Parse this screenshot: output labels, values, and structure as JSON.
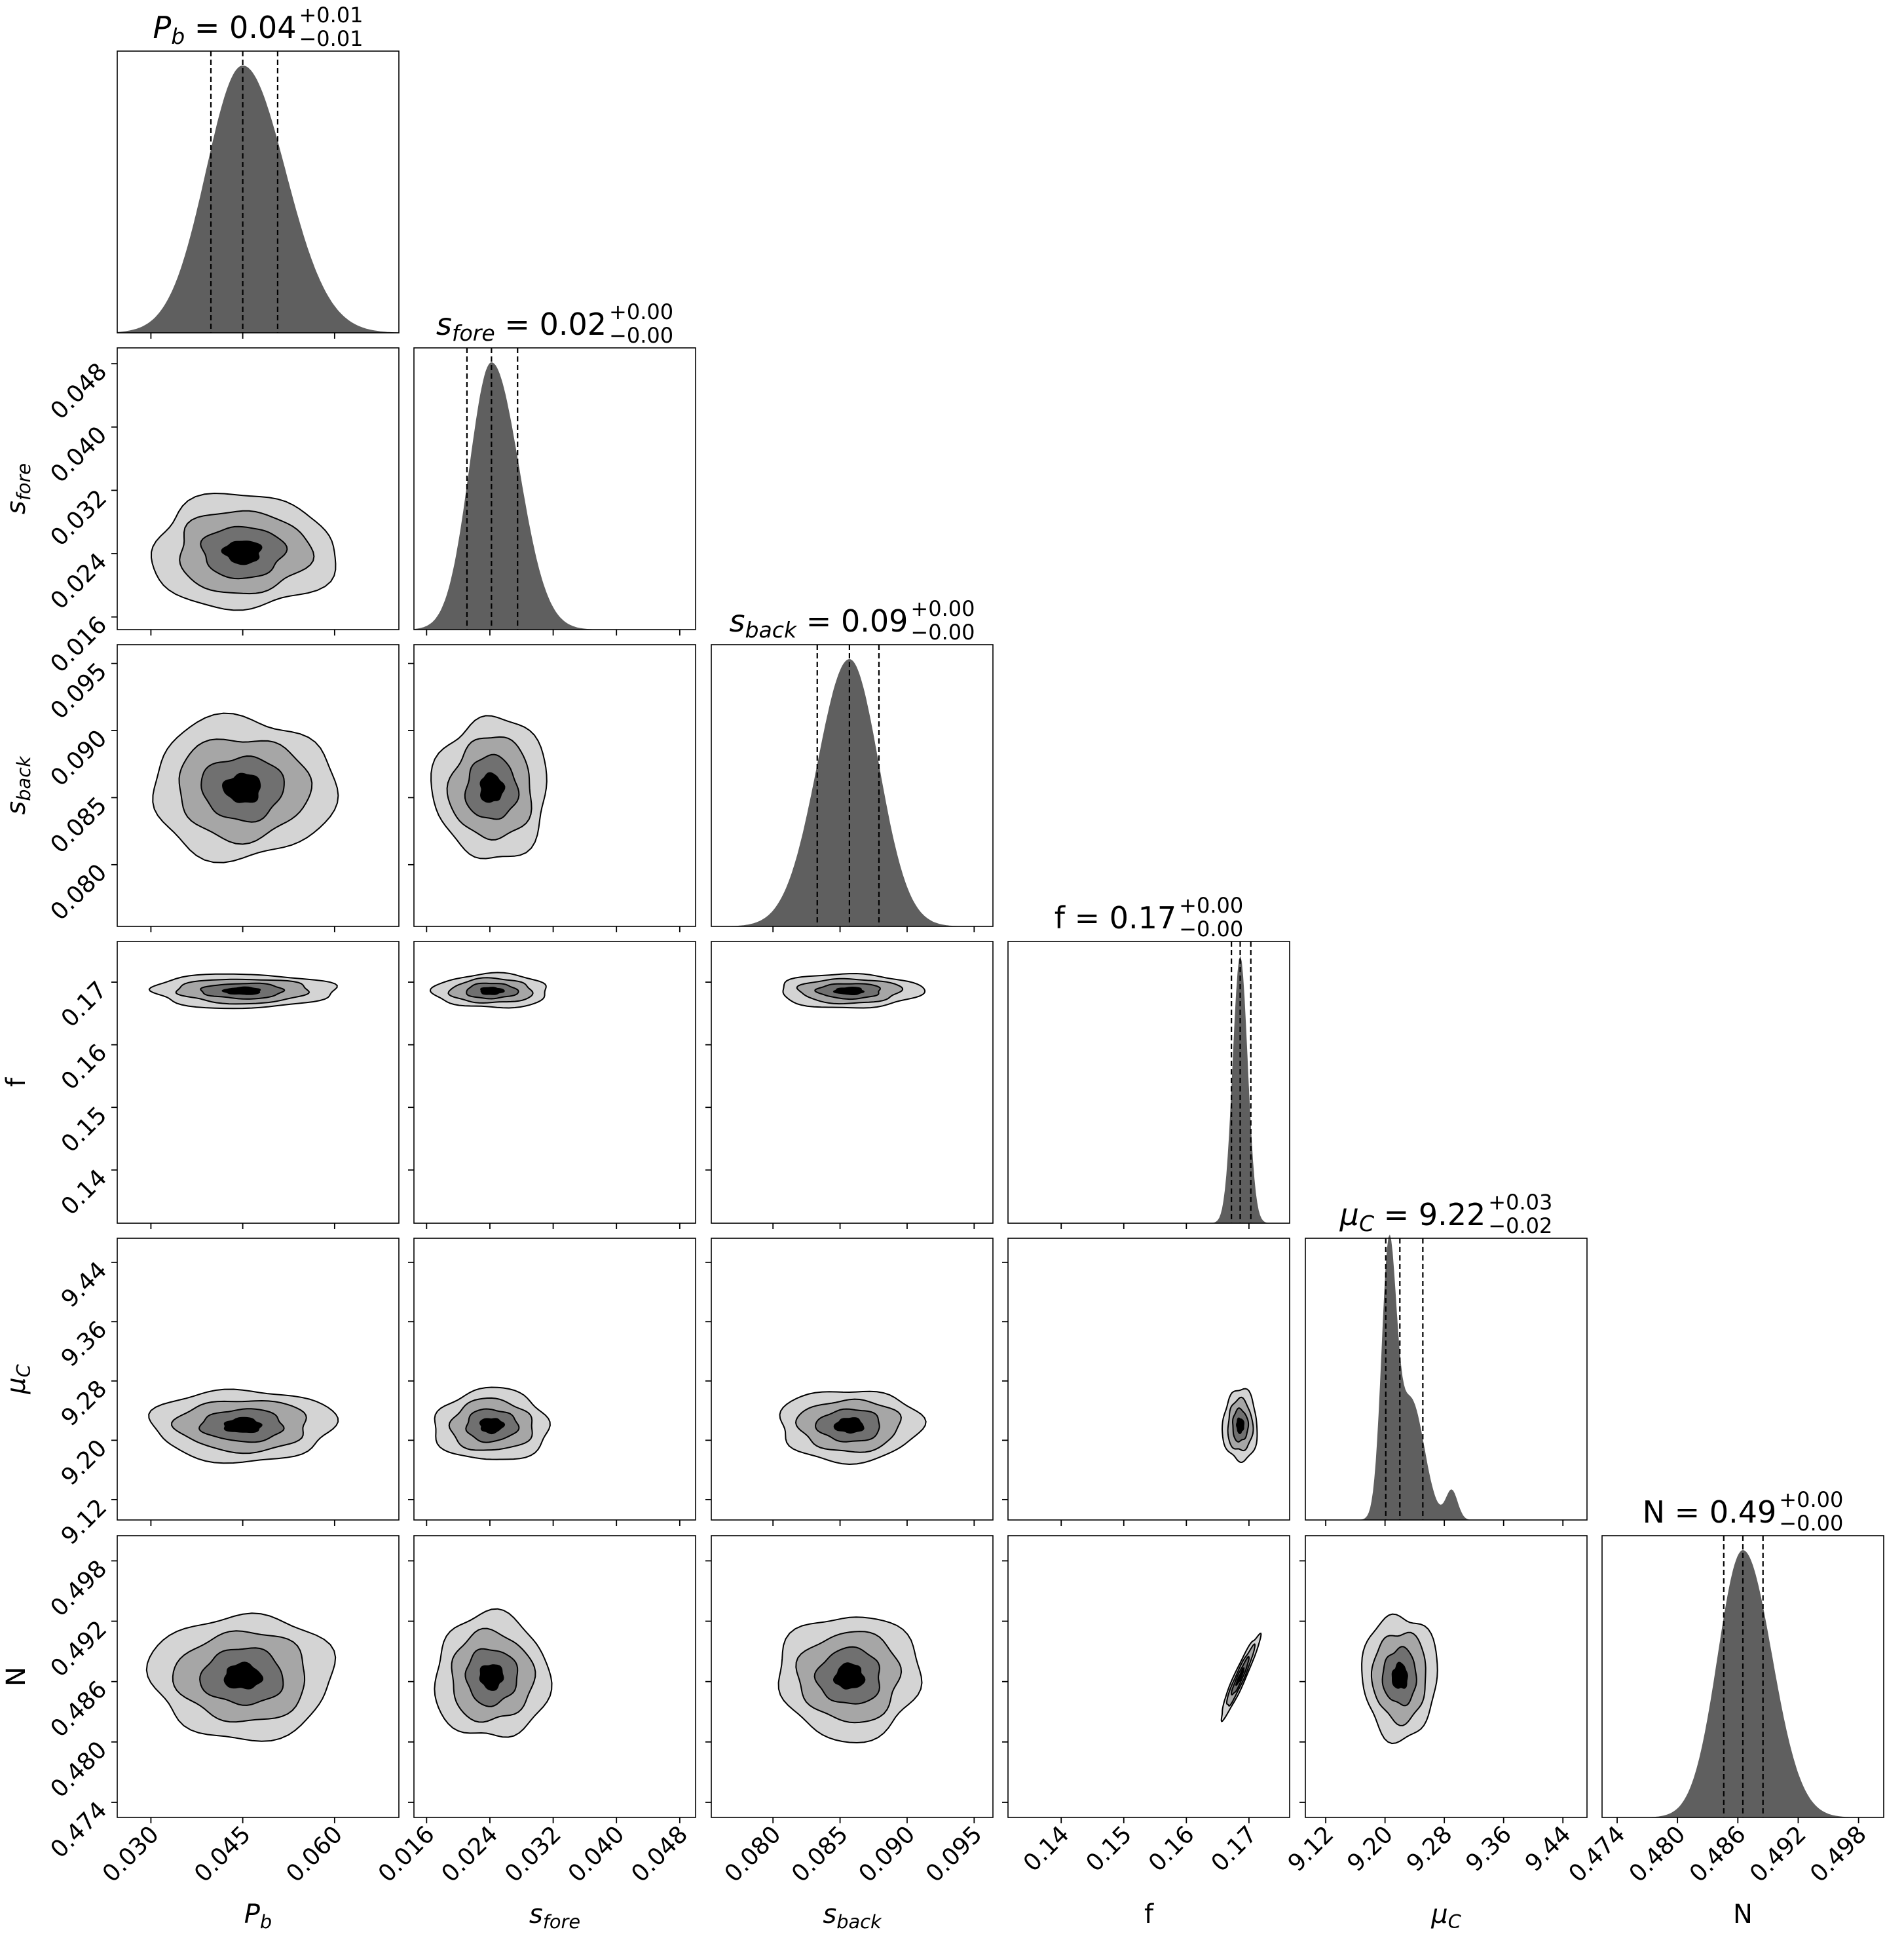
{
  "chart_data": {
    "type": "corner",
    "parameters": [
      {
        "key": "Pb",
        "label_main": "P",
        "label_sub": "b",
        "label_italic": true,
        "ticks": [
          "0.030",
          "0.045",
          "0.060"
        ],
        "tick_values": [
          0.03,
          0.045,
          0.06
        ],
        "range": [
          0.0245,
          0.0705
        ],
        "median": 0.045,
        "q16": 0.0398,
        "q84": 0.0507,
        "sigma_left": 0.006,
        "sigma_right": 0.007,
        "title_value": "0.04",
        "title_plus": "+0.01",
        "title_minus": "−0.01"
      },
      {
        "key": "sfore",
        "label_main": "s",
        "label_sub": "fore",
        "label_italic": true,
        "ticks": [
          "0.016",
          "0.024",
          "0.032",
          "0.040",
          "0.048"
        ],
        "tick_values": [
          0.016,
          0.024,
          0.032,
          0.04,
          0.048
        ],
        "range": [
          0.0144,
          0.05
        ],
        "median": 0.0242,
        "q16": 0.0211,
        "q84": 0.0275,
        "sigma_left": 0.0028,
        "sigma_right": 0.0035,
        "title_value": "0.02",
        "title_plus": "+0.00",
        "title_minus": "−0.00"
      },
      {
        "key": "sback",
        "label_main": "s",
        "label_sub": "back",
        "label_italic": true,
        "ticks": [
          "0.080",
          "0.085",
          "0.090",
          "0.095"
        ],
        "tick_values": [
          0.08,
          0.085,
          0.09,
          0.095
        ],
        "range": [
          0.0754,
          0.0964
        ],
        "median": 0.0857,
        "q16": 0.0833,
        "q84": 0.0879,
        "sigma_left": 0.0024,
        "sigma_right": 0.0022,
        "title_value": "0.09",
        "title_plus": "+0.00",
        "title_minus": "−0.00"
      },
      {
        "key": "f",
        "label_main": "f",
        "label_sub": "",
        "label_italic": false,
        "ticks": [
          "0.14",
          "0.15",
          "0.16",
          "0.17"
        ],
        "tick_values": [
          0.14,
          0.15,
          0.16,
          0.17
        ],
        "range": [
          0.1315,
          0.1765
        ],
        "median": 0.1686,
        "q16": 0.1672,
        "q84": 0.1703,
        "sigma_left": 0.0012,
        "sigma_right": 0.0012,
        "title_value": "0.17",
        "title_plus": "+0.00",
        "title_minus": "−0.00"
      },
      {
        "key": "muC",
        "label_main": "μ",
        "label_sub": "C",
        "label_italic": true,
        "ticks": [
          "9.12",
          "9.20",
          "9.28",
          "9.36",
          "9.44"
        ],
        "tick_values": [
          9.12,
          9.2,
          9.28,
          9.36,
          9.44
        ],
        "range": [
          9.0925,
          9.4725
        ],
        "median": 9.22,
        "q16": 9.201,
        "q84": 9.251,
        "sigma_left": 0.012,
        "sigma_right": 0.032,
        "title_value": "9.22",
        "title_plus": "+0.03",
        "title_minus": "−0.02"
      },
      {
        "key": "N",
        "label_main": "N",
        "label_sub": "",
        "label_italic": false,
        "ticks": [
          "0.474",
          "0.480",
          "0.486",
          "0.492",
          "0.498"
        ],
        "tick_values": [
          0.474,
          0.48,
          0.486,
          0.492,
          0.498
        ],
        "range": [
          0.4725,
          0.5005
        ],
        "median": 0.4865,
        "q16": 0.4846,
        "q84": 0.4885,
        "sigma_left": 0.0025,
        "sigma_right": 0.0029,
        "title_value": "0.49",
        "title_plus": "+0.00",
        "title_minus": "−0.00"
      }
    ],
    "contour_levels": 4,
    "contour_fill_colors": [
      "#d4d4d4",
      "#a6a6a6",
      "#707070",
      "#000000"
    ],
    "histogram_fill": "#5f5f5f",
    "grid": false
  }
}
